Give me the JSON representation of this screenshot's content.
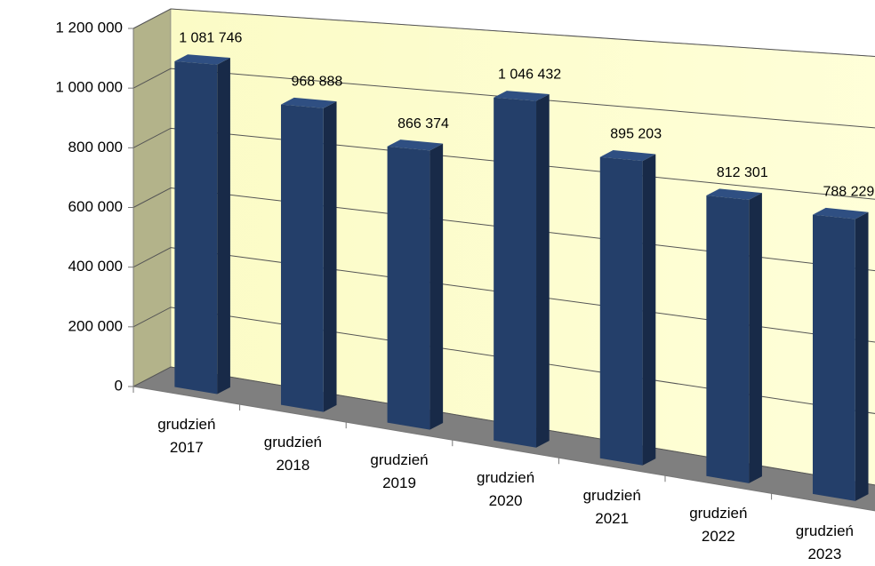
{
  "chart_data": {
    "type": "bar3d",
    "categories": [
      "grudzień 2017",
      "grudzień 2018",
      "grudzień 2019",
      "grudzień 2020",
      "grudzień 2021",
      "grudzień 2022",
      "grudzień 2023"
    ],
    "values": [
      1081746,
      968888,
      866374,
      1046432,
      895203,
      812301,
      788229
    ],
    "value_labels": [
      "1 081 746",
      "968 888",
      "866 374",
      "1 046 432",
      "895 203",
      "812 301",
      "788 229"
    ],
    "color": "#243f6a",
    "ylim": [
      0,
      1200000
    ],
    "yticks": [
      0,
      {
        "value": 200000,
        "label": "200 000"
      },
      {
        "value": 400000,
        "label": "400 000"
      },
      {
        "value": 600000,
        "label": "600 000"
      },
      {
        "value": 800000,
        "label": "800 000"
      },
      {
        "value": 1000000,
        "label": "1 000 000"
      },
      {
        "value": 1200000,
        "label": "1 200 000"
      }
    ],
    "grid": true
  }
}
